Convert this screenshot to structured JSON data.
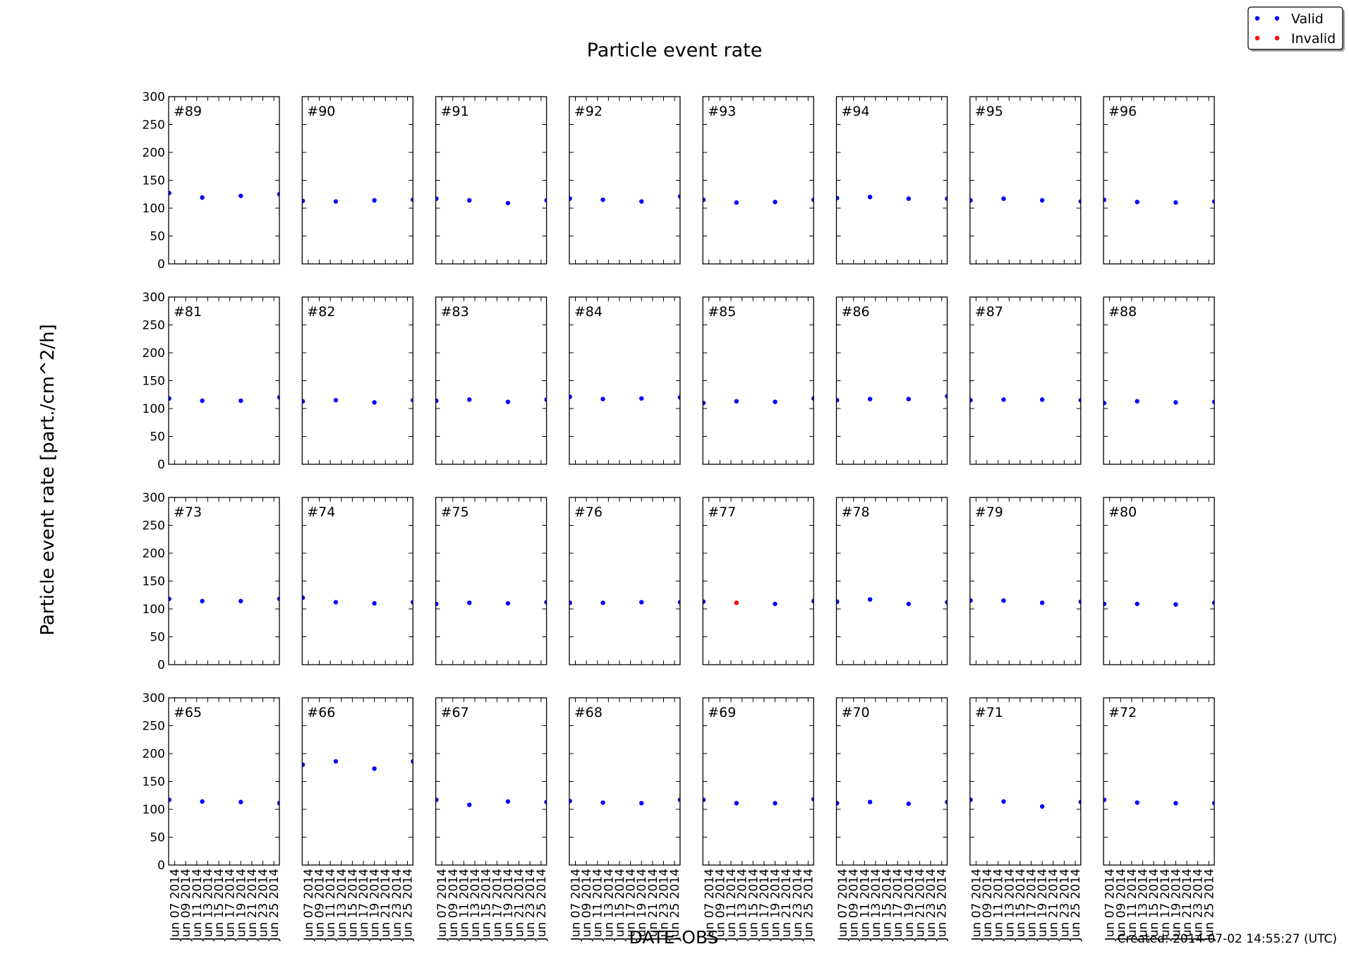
{
  "chart_data": {
    "type": "scatter",
    "title": "Particle event rate",
    "xlabel": "DATE-OBS",
    "ylabel": "Particle event rate [part./cm^2/h]",
    "footer": "Created: 2014-07-02 14:55:27 (UTC)",
    "ylim": [
      0,
      300
    ],
    "yticks": [
      "0",
      "50",
      "100",
      "150",
      "200",
      "250",
      "300"
    ],
    "xlim": [
      "2014-06-06",
      "2014-06-26"
    ],
    "xticks": [
      "2014-06-07",
      "2014-06-09",
      "2014-06-11",
      "2014-06-13",
      "2014-06-15",
      "2014-06-17",
      "2014-06-19",
      "2014-06-21",
      "2014-06-23",
      "2014-06-25"
    ],
    "xtick_labels": [
      "Jun 07 2014",
      "Jun 09 2014",
      "Jun 11 2014",
      "Jun 13 2014",
      "Jun 15 2014",
      "Jun 17 2014",
      "Jun 19 2014",
      "Jun 21 2014",
      "Jun 23 2014",
      "Jun 25 2014"
    ],
    "grid": false,
    "legend": {
      "placement": "top-right",
      "entries": [
        {
          "name": "Valid",
          "color": "#0000ff"
        },
        {
          "name": "Invalid",
          "color": "#ff0000"
        }
      ]
    },
    "x": [
      "2014-06-06",
      "2014-06-12",
      "2014-06-19",
      "2014-06-26"
    ],
    "panels": [
      [
        {
          "label": "#89",
          "y": [
            127,
            119,
            122,
            125
          ]
        },
        {
          "label": "#90",
          "y": [
            113,
            112,
            114,
            115
          ]
        },
        {
          "label": "#91",
          "y": [
            117,
            114,
            109,
            114
          ]
        },
        {
          "label": "#92",
          "y": [
            117,
            115,
            112,
            121
          ]
        },
        {
          "label": "#93",
          "y": [
            115,
            110,
            111,
            115
          ]
        },
        {
          "label": "#94",
          "y": [
            118,
            120,
            117,
            117
          ]
        },
        {
          "label": "#95",
          "y": [
            114,
            117,
            114,
            112
          ]
        },
        {
          "label": "#96",
          "y": [
            115,
            111,
            110,
            112
          ]
        }
      ],
      [
        {
          "label": "#81",
          "y": [
            118,
            114,
            114,
            120
          ]
        },
        {
          "label": "#82",
          "y": [
            113,
            115,
            111,
            115
          ]
        },
        {
          "label": "#83",
          "y": [
            114,
            116,
            112,
            116
          ]
        },
        {
          "label": "#84",
          "y": [
            121,
            117,
            118,
            120
          ]
        },
        {
          "label": "#85",
          "y": [
            110,
            113,
            112,
            118
          ]
        },
        {
          "label": "#86",
          "y": [
            115,
            117,
            117,
            122
          ]
        },
        {
          "label": "#87",
          "y": [
            115,
            116,
            116,
            115
          ]
        },
        {
          "label": "#88",
          "y": [
            110,
            113,
            111,
            112
          ]
        }
      ],
      [
        {
          "label": "#73",
          "y": [
            118,
            114,
            114,
            118
          ]
        },
        {
          "label": "#74",
          "y": [
            120,
            112,
            110,
            112
          ]
        },
        {
          "label": "#75",
          "y": [
            109,
            111,
            110,
            112
          ]
        },
        {
          "label": "#76",
          "y": [
            111,
            111,
            112,
            112
          ]
        },
        {
          "label": "#77",
          "y": [
            113,
            111,
            109,
            114
          ],
          "invalid": [
            false,
            true,
            false,
            false
          ]
        },
        {
          "label": "#78",
          "y": [
            113,
            117,
            109,
            112
          ]
        },
        {
          "label": "#79",
          "y": [
            115,
            115,
            111,
            113
          ]
        },
        {
          "label": "#80",
          "y": [
            109,
            109,
            108,
            111
          ]
        }
      ],
      [
        {
          "label": "#65",
          "y": [
            117,
            114,
            113,
            111
          ]
        },
        {
          "label": "#66",
          "y": [
            180,
            186,
            173,
            186
          ]
        },
        {
          "label": "#67",
          "y": [
            117,
            108,
            114,
            113
          ]
        },
        {
          "label": "#68",
          "y": [
            115,
            112,
            111,
            117
          ]
        },
        {
          "label": "#69",
          "y": [
            117,
            111,
            111,
            118
          ]
        },
        {
          "label": "#70",
          "y": [
            111,
            113,
            110,
            113
          ]
        },
        {
          "label": "#71",
          "y": [
            117,
            114,
            105,
            113
          ]
        },
        {
          "label": "#72",
          "y": [
            117,
            112,
            111,
            111
          ]
        }
      ]
    ]
  }
}
